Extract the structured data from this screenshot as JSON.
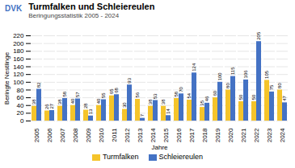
{
  "chart_data": {
    "type": "bar",
    "title": "Turmfalken und Schleiereulen",
    "subtitle": "Beringungsstatistik 2005 - 2024",
    "annotations": [
      "DVK"
    ],
    "categories": [
      "2005",
      "2006",
      "2007",
      "2008",
      "2009",
      "2010",
      "2011",
      "2012",
      "2013",
      "2014",
      "2015",
      "2016",
      "2017",
      "2018",
      "2019",
      "2020",
      "2021",
      "2022",
      "2023",
      "2024"
    ],
    "series": [
      {
        "name": "Turmfalken",
        "color": "#F5C42A",
        "values": [
          38,
          26,
          38,
          40,
          28,
          40,
          65,
          30,
          56,
          38,
          38,
          58,
          54,
          35,
          60,
          80,
          50,
          50,
          105,
          80
        ]
      },
      {
        "name": "Schleiereulen",
        "color": "#4472C4",
        "values": [
          82,
          27,
          58,
          57,
          13,
          55,
          68,
          93,
          7,
          53,
          14,
          70,
          124,
          46,
          100,
          115,
          106,
          205,
          75,
          47
        ]
      }
    ],
    "xlabel": "Jahre",
    "ylabel": "Beringte Nestlinge",
    "ylim": [
      0,
      220
    ],
    "yticks": [
      0,
      20,
      40,
      60,
      80,
      100,
      120,
      140,
      160,
      180,
      200,
      220
    ],
    "grid": true,
    "legend": "bottom",
    "data_labels": true
  }
}
